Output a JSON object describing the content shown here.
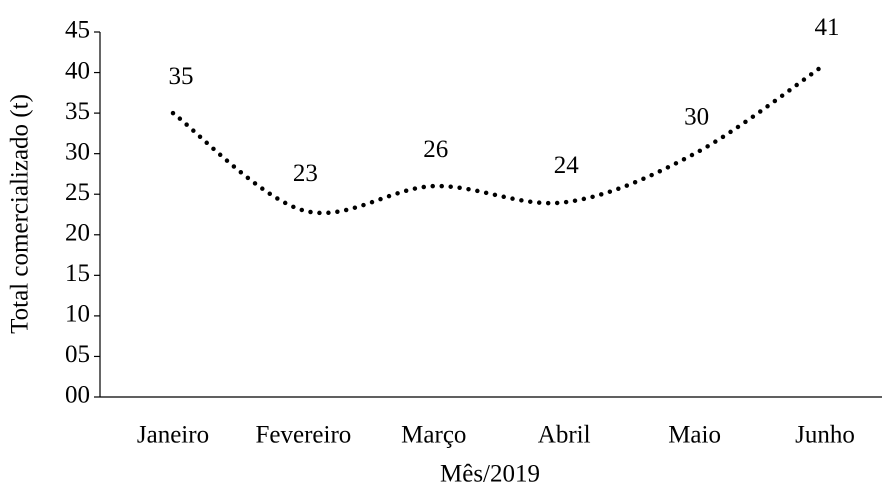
{
  "chart_data": {
    "type": "line",
    "x_label": "Mês/2019",
    "y_label": "Total comercializado (t)",
    "categories": [
      "Janeiro",
      "Fevereiro",
      "Março",
      "Abril",
      "Maio",
      "Junho"
    ],
    "values": [
      35,
      23,
      26,
      24,
      30,
      41
    ],
    "color": "#000000",
    "ylim": [
      0,
      45
    ],
    "yticks": [
      {
        "value": 0,
        "label": "00"
      },
      {
        "value": 5,
        "label": "05"
      },
      10,
      15,
      20,
      25,
      30,
      35,
      40,
      45
    ],
    "grid": false
  }
}
